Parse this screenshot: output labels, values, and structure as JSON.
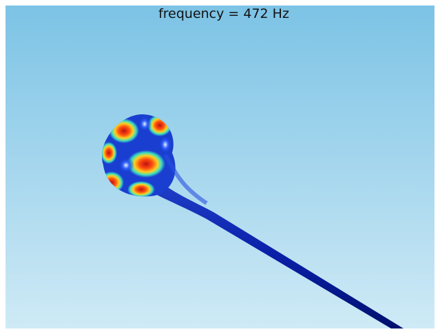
{
  "title": "frequency = 472 Hz"
}
